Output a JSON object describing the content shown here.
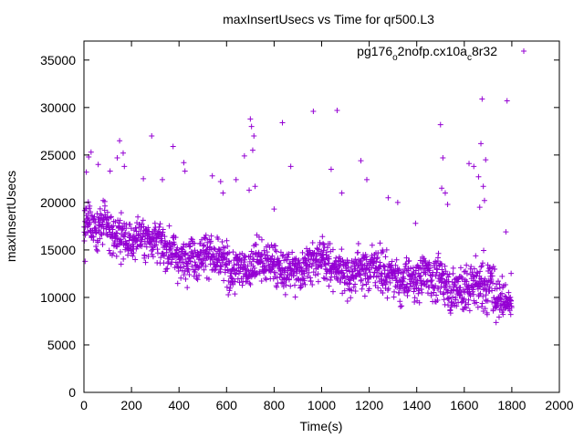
{
  "chart_data": {
    "type": "scatter",
    "title": "maxInsertUsecs vs Time for qr500.L3",
    "xlabel": "Time(s)",
    "ylabel": "maxInsertUsecs",
    "xlim": [
      0,
      2000
    ],
    "ylim": [
      0,
      37000
    ],
    "x_ticks": [
      0,
      200,
      400,
      600,
      800,
      1000,
      1200,
      1400,
      1600,
      1800,
      2000
    ],
    "y_ticks": [
      0,
      5000,
      10000,
      15000,
      20000,
      25000,
      30000,
      35000
    ],
    "x_tick_labels": [
      "0",
      "200",
      "400",
      "600",
      "800",
      "1000",
      "1200",
      "1400",
      "1600",
      "1800",
      "2000"
    ],
    "y_tick_labels": [
      "0",
      "5000",
      "10000",
      "15000",
      "20000",
      "25000",
      "30000",
      "35000"
    ],
    "grid": false,
    "legend_position": "top-right",
    "marker": "+",
    "series": [
      {
        "name_main": "pg176",
        "name_sub1": "o",
        "name_mid": "2nofp.cx10a",
        "name_sub2": "c",
        "name_end": "8r32",
        "color": "#9400d3",
        "trend_points": [
          {
            "x": 0,
            "y": 17500
          },
          {
            "x": 200,
            "y": 16500
          },
          {
            "x": 400,
            "y": 14800
          },
          {
            "x": 600,
            "y": 13500
          },
          {
            "x": 800,
            "y": 13200
          },
          {
            "x": 1000,
            "y": 13500
          },
          {
            "x": 1200,
            "y": 12800
          },
          {
            "x": 1400,
            "y": 12000
          },
          {
            "x": 1600,
            "y": 11200
          },
          {
            "x": 1800,
            "y": 10500
          }
        ],
        "x_range": [
          0,
          1800
        ],
        "point_count": 1800,
        "outliers": [
          {
            "x": 5,
            "y": 13800
          },
          {
            "x": 10,
            "y": 23200
          },
          {
            "x": 20,
            "y": 24800
          },
          {
            "x": 30,
            "y": 25300
          },
          {
            "x": 60,
            "y": 24000
          },
          {
            "x": 110,
            "y": 23300
          },
          {
            "x": 140,
            "y": 24700
          },
          {
            "x": 150,
            "y": 26500
          },
          {
            "x": 165,
            "y": 25200
          },
          {
            "x": 170,
            "y": 23800
          },
          {
            "x": 250,
            "y": 22500
          },
          {
            "x": 285,
            "y": 27000
          },
          {
            "x": 330,
            "y": 22400
          },
          {
            "x": 375,
            "y": 25900
          },
          {
            "x": 420,
            "y": 24200
          },
          {
            "x": 425,
            "y": 23300
          },
          {
            "x": 540,
            "y": 22800
          },
          {
            "x": 575,
            "y": 22200
          },
          {
            "x": 585,
            "y": 21000
          },
          {
            "x": 640,
            "y": 22400
          },
          {
            "x": 675,
            "y": 24900
          },
          {
            "x": 695,
            "y": 21300
          },
          {
            "x": 700,
            "y": 28800
          },
          {
            "x": 705,
            "y": 28000
          },
          {
            "x": 710,
            "y": 25500
          },
          {
            "x": 715,
            "y": 27000
          },
          {
            "x": 720,
            "y": 21700
          },
          {
            "x": 800,
            "y": 19300
          },
          {
            "x": 835,
            "y": 28400
          },
          {
            "x": 870,
            "y": 23800
          },
          {
            "x": 965,
            "y": 29600
          },
          {
            "x": 1040,
            "y": 23500
          },
          {
            "x": 1065,
            "y": 29700
          },
          {
            "x": 1085,
            "y": 21000
          },
          {
            "x": 1165,
            "y": 24400
          },
          {
            "x": 1190,
            "y": 22400
          },
          {
            "x": 1280,
            "y": 20500
          },
          {
            "x": 1320,
            "y": 20000
          },
          {
            "x": 1395,
            "y": 17800
          },
          {
            "x": 1500,
            "y": 28200
          },
          {
            "x": 1510,
            "y": 24700
          },
          {
            "x": 1505,
            "y": 21500
          },
          {
            "x": 1520,
            "y": 21000
          },
          {
            "x": 1530,
            "y": 19800
          },
          {
            "x": 1620,
            "y": 24100
          },
          {
            "x": 1640,
            "y": 23800
          },
          {
            "x": 1660,
            "y": 22700
          },
          {
            "x": 1665,
            "y": 19500
          },
          {
            "x": 1670,
            "y": 26200
          },
          {
            "x": 1675,
            "y": 30900
          },
          {
            "x": 1680,
            "y": 21700
          },
          {
            "x": 1685,
            "y": 20200
          },
          {
            "x": 1690,
            "y": 24500
          },
          {
            "x": 1780,
            "y": 30700
          },
          {
            "x": 1775,
            "y": 16900
          }
        ]
      }
    ]
  }
}
